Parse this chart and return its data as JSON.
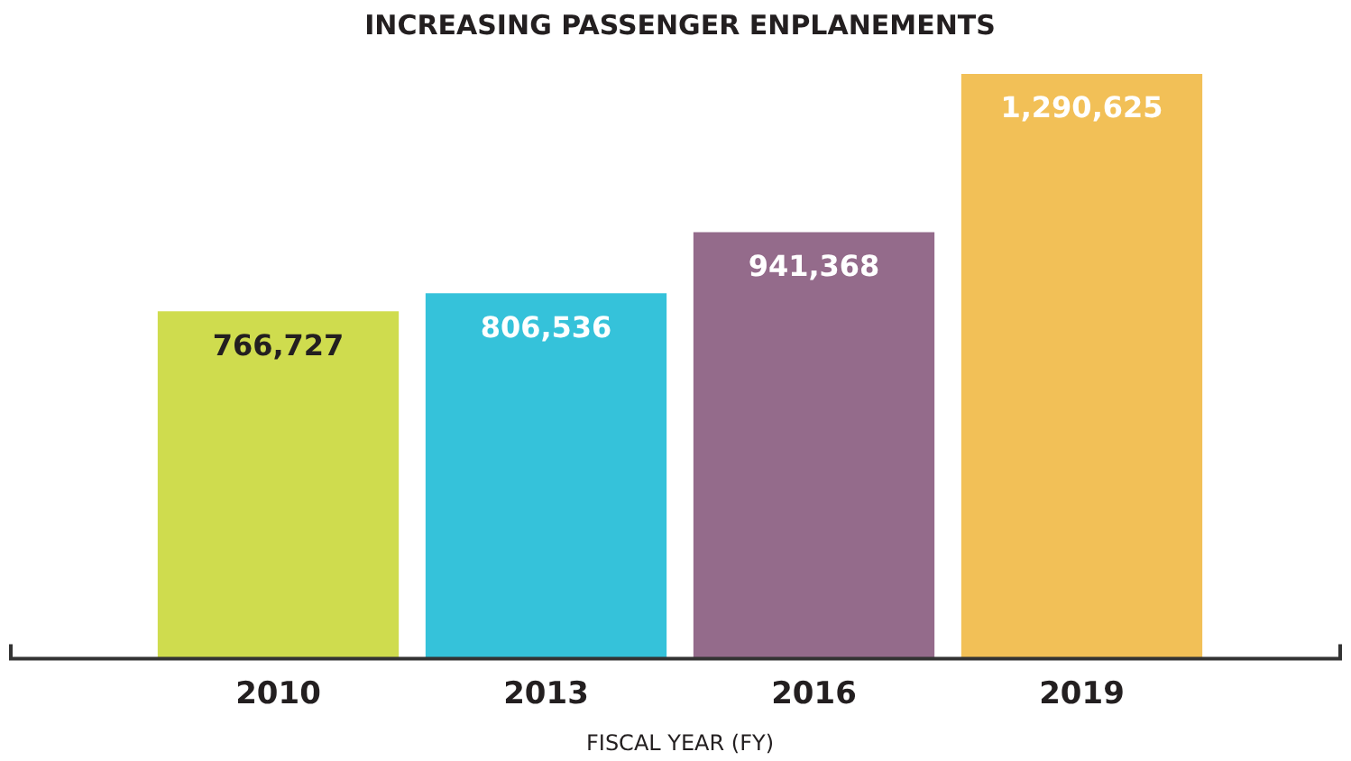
{
  "chart_data": {
    "type": "bar",
    "title": "INCREASING PASSENGER ENPLANEMENTS",
    "xlabel": "FISCAL YEAR (FY)",
    "categories": [
      "2010",
      "2013",
      "2016",
      "2019"
    ],
    "values": [
      766727,
      806536,
      941368,
      1290625
    ],
    "colors": [
      "#cfdc4e",
      "#35c2da",
      "#946b8b",
      "#f2c057"
    ],
    "value_labels": [
      "766,727",
      "806,536",
      "941,368",
      "1,290,625"
    ],
    "grid": false,
    "legend": false
  }
}
